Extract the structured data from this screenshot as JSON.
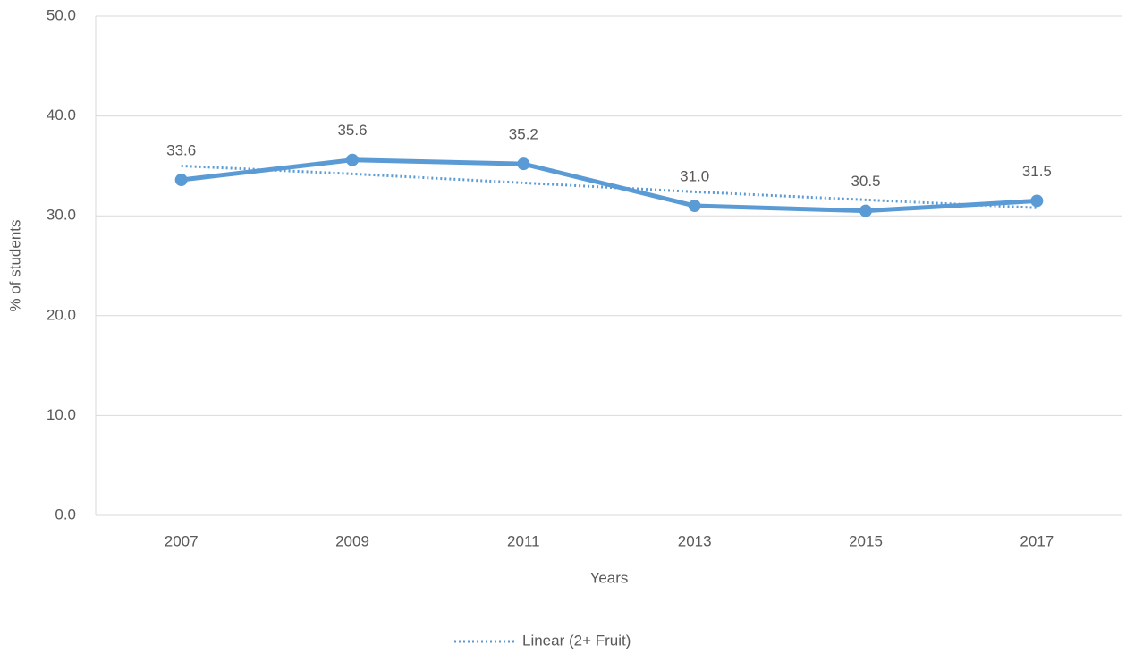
{
  "chart_data": {
    "type": "line",
    "categories": [
      "2007",
      "2009",
      "2011",
      "2013",
      "2015",
      "2017"
    ],
    "values": [
      33.6,
      35.6,
      35.2,
      31.0,
      30.5,
      31.5
    ],
    "value_labels": [
      "33.6",
      "35.6",
      "35.2",
      "31.0",
      "30.5",
      "31.5"
    ],
    "color": "#5b9bd5",
    "trendline": {
      "name": "Linear (2+ Fruit)",
      "color": "#5b9bd5",
      "values": [
        35.0,
        34.2,
        33.3,
        32.4,
        31.6,
        30.8
      ]
    },
    "xlabel": "Years",
    "ylabel": "% of students",
    "ylim": [
      0,
      50
    ],
    "yticks": [
      {
        "value": 0,
        "label": "0.0"
      },
      {
        "value": 10,
        "label": "10.0"
      },
      {
        "value": 20,
        "label": "20.0"
      },
      {
        "value": 30,
        "label": "30.0"
      },
      {
        "value": 40,
        "label": "40.0"
      },
      {
        "value": 50,
        "label": "50.0"
      }
    ],
    "grid": true,
    "legend": "bottom"
  }
}
